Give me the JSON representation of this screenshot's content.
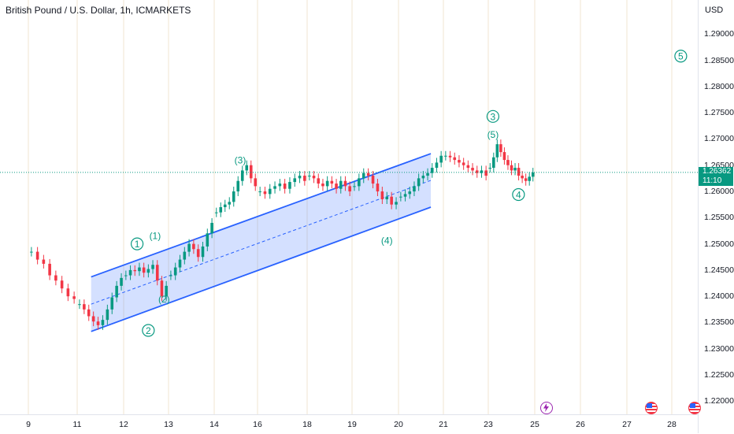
{
  "header": {
    "title": "British Pound / U.S. Dollar, 1h, ICMARKETS"
  },
  "axis": {
    "currency": "USD"
  },
  "price_label": {
    "price": "1.26362",
    "countdown": "11:10"
  },
  "colors": {
    "up": "#089981",
    "down": "#f23645",
    "channel": "#2962ff",
    "channel_fill": "#2962ff",
    "wave": "#089981",
    "grid": "#f0e6d2"
  },
  "events": [
    {
      "icon": "lightning-icon",
      "x_label": "25"
    },
    {
      "icon": "us-flag-icon",
      "x_label": "27"
    },
    {
      "icon": "us-flag-icon",
      "x_label": "28"
    }
  ],
  "chart_data": {
    "type": "candlestick",
    "title": "British Pound / U.S. Dollar, 1h, ICMARKETS",
    "ylabel": "USD",
    "ylim": [
      1.2175,
      1.2965
    ],
    "yticks": [
      "1.29000",
      "1.28500",
      "1.28000",
      "1.27500",
      "1.27000",
      "1.26500",
      "1.26000",
      "1.25500",
      "1.25000",
      "1.24500",
      "1.24000",
      "1.23500",
      "1.23000",
      "1.22500",
      "1.22000"
    ],
    "xticks": [
      "9",
      "11",
      "12",
      "13",
      "14",
      "16",
      "18",
      "19",
      "20",
      "21",
      "23",
      "25",
      "26",
      "27",
      "28"
    ],
    "last_price": 1.26362,
    "series": [
      {
        "x": "9",
        "values": [
          1.2485,
          1.247,
          1.2462,
          1.244,
          1.243,
          1.2415,
          1.24,
          1.2395
        ]
      },
      {
        "x": "11",
        "values": [
          1.2385,
          1.2375,
          1.2362,
          1.2352,
          1.2345,
          1.2355,
          1.2375,
          1.2398,
          1.242,
          1.2435
        ]
      },
      {
        "x": "12",
        "values": [
          1.244,
          1.245,
          1.2448,
          1.2455,
          1.2445,
          1.2452,
          1.246,
          1.243,
          1.24,
          1.242
        ]
      },
      {
        "x": "13",
        "values": [
          1.244,
          1.2455,
          1.247,
          1.2485,
          1.25,
          1.249,
          1.2475,
          1.2495,
          1.252,
          1.254
        ]
      },
      {
        "x": "14",
        "values": [
          1.256,
          1.257,
          1.2575,
          1.258,
          1.26,
          1.262,
          1.264,
          1.265,
          1.2625,
          1.261
        ]
      },
      {
        "x": "16",
        "values": [
          1.26,
          1.2595,
          1.2605,
          1.261,
          1.2615,
          1.2605,
          1.2618,
          1.2625,
          1.263,
          1.262
        ]
      },
      {
        "x": "18",
        "values": [
          1.263,
          1.2625,
          1.2615,
          1.261,
          1.262,
          1.2615,
          1.2605,
          1.262,
          1.261,
          1.26
        ]
      },
      {
        "x": "19",
        "values": [
          1.261,
          1.2625,
          1.2635,
          1.263,
          1.2615,
          1.26,
          1.2585,
          1.259,
          1.2575,
          1.258
        ]
      },
      {
        "x": "20",
        "values": [
          1.259,
          1.2595,
          1.26,
          1.261,
          1.2625,
          1.263,
          1.2635,
          1.2645,
          1.2655,
          1.2668
        ]
      },
      {
        "x": "21",
        "values": [
          1.2668,
          1.2665,
          1.266,
          1.2655,
          1.265,
          1.2645,
          1.264,
          1.2635,
          1.264,
          1.263
        ]
      },
      {
        "x": "23",
        "values": [
          1.2645,
          1.2665,
          1.269,
          1.2675,
          1.266,
          1.265,
          1.264,
          1.2645,
          1.263,
          1.2625,
          1.262,
          1.2628,
          1.2636
        ]
      }
    ],
    "channel": {
      "upper": [
        [
          "11",
          1.2437
        ],
        [
          "20",
          1.2672
        ]
      ],
      "lower": [
        [
          "11",
          1.2333
        ],
        [
          "20",
          1.257
        ]
      ],
      "median": [
        [
          "11",
          1.2385
        ],
        [
          "20",
          1.2621
        ]
      ]
    },
    "annotations": [
      {
        "text": "1",
        "circled": true,
        "x": "12",
        "y": 1.25
      },
      {
        "text": "(1)",
        "circled": false,
        "x": "12",
        "y": 1.2516
      },
      {
        "text": "(2)",
        "circled": false,
        "x": "12",
        "y": 1.2395
      },
      {
        "text": "2",
        "circled": true,
        "x": "12",
        "y": 1.2335
      },
      {
        "text": "(3)",
        "circled": false,
        "x": "14",
        "y": 1.266
      },
      {
        "text": "(4)",
        "circled": false,
        "x": "19",
        "y": 1.2507
      },
      {
        "text": "3",
        "circled": true,
        "x": "23",
        "y": 1.2743
      },
      {
        "text": "(5)",
        "circled": false,
        "x": "23",
        "y": 1.2709
      },
      {
        "text": "4",
        "circled": true,
        "x": "23",
        "y": 1.2594
      },
      {
        "text": "5",
        "circled": true,
        "x": "28",
        "y": 1.2858
      }
    ]
  }
}
